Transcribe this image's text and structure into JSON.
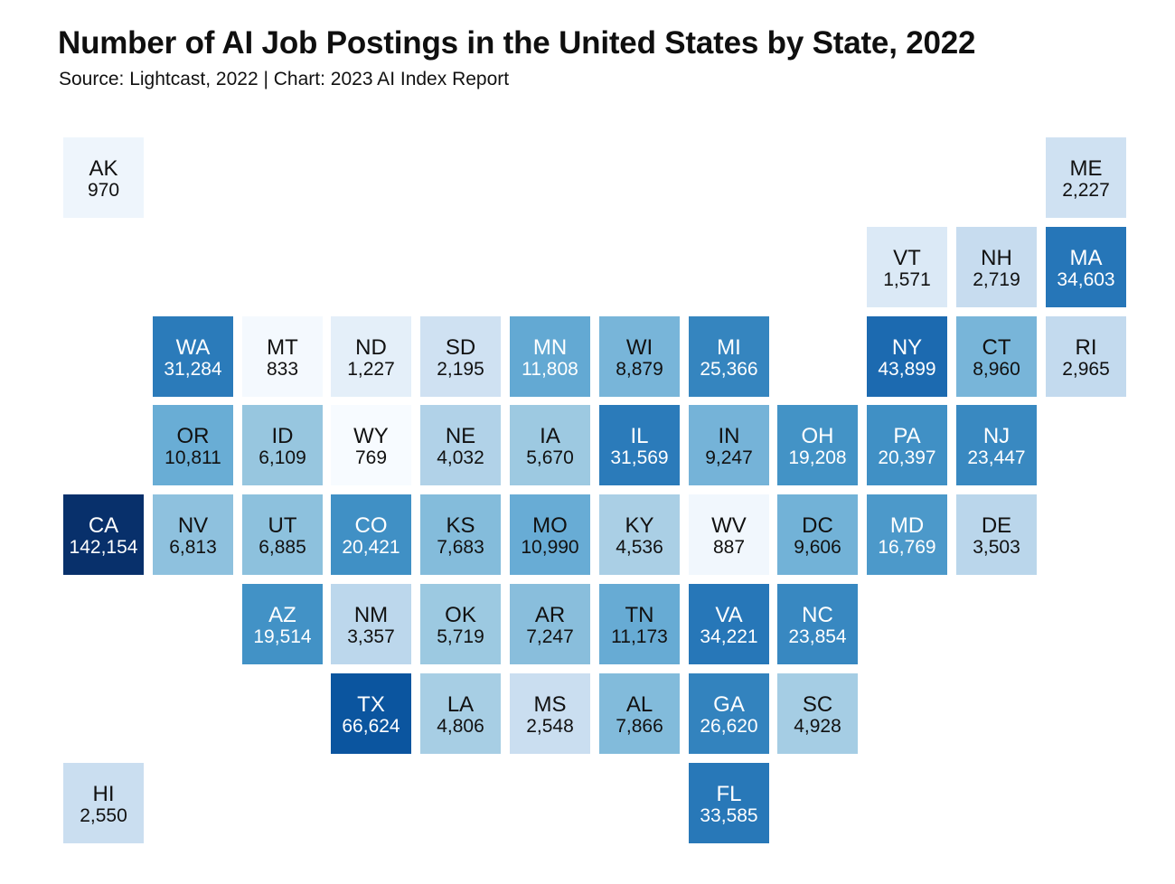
{
  "chart_data": {
    "type": "heatmap",
    "subtype": "tile-grid-map",
    "title": "Number of AI Job Postings in the United States by State, 2022",
    "subtitle": "Source: Lightcast, 2022 | Chart: 2023 AI Index Report",
    "color_scale": {
      "low": "#f7fbff",
      "mid": "#6baed6",
      "high": "#08306b",
      "min_value": 769,
      "max_value": 142154
    },
    "states": [
      {
        "abbr": "AK",
        "value": 970,
        "label": "970",
        "row": 0,
        "col": 0
      },
      {
        "abbr": "ME",
        "value": 2227,
        "label": "2,227",
        "row": 0,
        "col": 11
      },
      {
        "abbr": "VT",
        "value": 1571,
        "label": "1,571",
        "row": 1,
        "col": 9
      },
      {
        "abbr": "NH",
        "value": 2719,
        "label": "2,719",
        "row": 1,
        "col": 10
      },
      {
        "abbr": "MA",
        "value": 34603,
        "label": "34,603",
        "row": 1,
        "col": 11
      },
      {
        "abbr": "WA",
        "value": 31284,
        "label": "31,284",
        "row": 2,
        "col": 1
      },
      {
        "abbr": "MT",
        "value": 833,
        "label": "833",
        "row": 2,
        "col": 2
      },
      {
        "abbr": "ND",
        "value": 1227,
        "label": "1,227",
        "row": 2,
        "col": 3
      },
      {
        "abbr": "SD",
        "value": 2195,
        "label": "2,195",
        "row": 2,
        "col": 4
      },
      {
        "abbr": "MN",
        "value": 11808,
        "label": "11,808",
        "row": 2,
        "col": 5
      },
      {
        "abbr": "WI",
        "value": 8879,
        "label": "8,879",
        "row": 2,
        "col": 6
      },
      {
        "abbr": "MI",
        "value": 25366,
        "label": "25,366",
        "row": 2,
        "col": 7
      },
      {
        "abbr": "NY",
        "value": 43899,
        "label": "43,899",
        "row": 2,
        "col": 9
      },
      {
        "abbr": "CT",
        "value": 8960,
        "label": "8,960",
        "row": 2,
        "col": 10
      },
      {
        "abbr": "RI",
        "value": 2965,
        "label": "2,965",
        "row": 2,
        "col": 11
      },
      {
        "abbr": "OR",
        "value": 10811,
        "label": "10,811",
        "row": 3,
        "col": 1
      },
      {
        "abbr": "ID",
        "value": 6109,
        "label": "6,109",
        "row": 3,
        "col": 2
      },
      {
        "abbr": "WY",
        "value": 769,
        "label": "769",
        "row": 3,
        "col": 3
      },
      {
        "abbr": "NE",
        "value": 4032,
        "label": "4,032",
        "row": 3,
        "col": 4
      },
      {
        "abbr": "IA",
        "value": 5670,
        "label": "5,670",
        "row": 3,
        "col": 5
      },
      {
        "abbr": "IL",
        "value": 31569,
        "label": "31,569",
        "row": 3,
        "col": 6
      },
      {
        "abbr": "IN",
        "value": 9247,
        "label": "9,247",
        "row": 3,
        "col": 7
      },
      {
        "abbr": "OH",
        "value": 19208,
        "label": "19,208",
        "row": 3,
        "col": 8
      },
      {
        "abbr": "PA",
        "value": 20397,
        "label": "20,397",
        "row": 3,
        "col": 9
      },
      {
        "abbr": "NJ",
        "value": 23447,
        "label": "23,447",
        "row": 3,
        "col": 10
      },
      {
        "abbr": "CA",
        "value": 142154,
        "label": "142,154",
        "row": 4,
        "col": 0
      },
      {
        "abbr": "NV",
        "value": 6813,
        "label": "6,813",
        "row": 4,
        "col": 1
      },
      {
        "abbr": "UT",
        "value": 6885,
        "label": "6,885",
        "row": 4,
        "col": 2
      },
      {
        "abbr": "CO",
        "value": 20421,
        "label": "20,421",
        "row": 4,
        "col": 3
      },
      {
        "abbr": "KS",
        "value": 7683,
        "label": "7,683",
        "row": 4,
        "col": 4
      },
      {
        "abbr": "MO",
        "value": 10990,
        "label": "10,990",
        "row": 4,
        "col": 5
      },
      {
        "abbr": "KY",
        "value": 4536,
        "label": "4,536",
        "row": 4,
        "col": 6
      },
      {
        "abbr": "WV",
        "value": 887,
        "label": "887",
        "row": 4,
        "col": 7
      },
      {
        "abbr": "DC",
        "value": 9606,
        "label": "9,606",
        "row": 4,
        "col": 8
      },
      {
        "abbr": "MD",
        "value": 16769,
        "label": "16,769",
        "row": 4,
        "col": 9
      },
      {
        "abbr": "DE",
        "value": 3503,
        "label": "3,503",
        "row": 4,
        "col": 10
      },
      {
        "abbr": "AZ",
        "value": 19514,
        "label": "19,514",
        "row": 5,
        "col": 2
      },
      {
        "abbr": "NM",
        "value": 3357,
        "label": "3,357",
        "row": 5,
        "col": 3
      },
      {
        "abbr": "OK",
        "value": 5719,
        "label": "5,719",
        "row": 5,
        "col": 4
      },
      {
        "abbr": "AR",
        "value": 7247,
        "label": "7,247",
        "row": 5,
        "col": 5
      },
      {
        "abbr": "TN",
        "value": 11173,
        "label": "11,173",
        "row": 5,
        "col": 6
      },
      {
        "abbr": "VA",
        "value": 34221,
        "label": "34,221",
        "row": 5,
        "col": 7
      },
      {
        "abbr": "NC",
        "value": 23854,
        "label": "23,854",
        "row": 5,
        "col": 8
      },
      {
        "abbr": "TX",
        "value": 66624,
        "label": "66,624",
        "row": 6,
        "col": 3
      },
      {
        "abbr": "LA",
        "value": 4806,
        "label": "4,806",
        "row": 6,
        "col": 4
      },
      {
        "abbr": "MS",
        "value": 2548,
        "label": "2,548",
        "row": 6,
        "col": 5
      },
      {
        "abbr": "AL",
        "value": 7866,
        "label": "7,866",
        "row": 6,
        "col": 6
      },
      {
        "abbr": "GA",
        "value": 26620,
        "label": "26,620",
        "row": 6,
        "col": 7
      },
      {
        "abbr": "SC",
        "value": 4928,
        "label": "4,928",
        "row": 6,
        "col": 8
      },
      {
        "abbr": "HI",
        "value": 2550,
        "label": "2,550",
        "row": 7,
        "col": 0
      },
      {
        "abbr": "FL",
        "value": 33585,
        "label": "33,585",
        "row": 7,
        "col": 7
      }
    ]
  }
}
